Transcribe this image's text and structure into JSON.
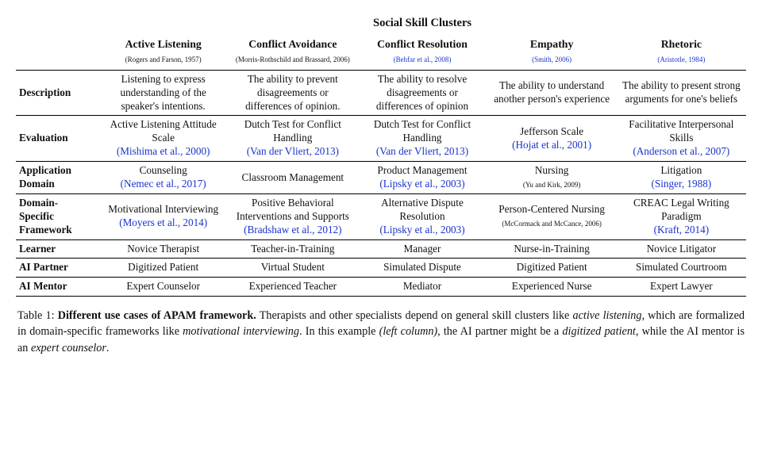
{
  "table": {
    "super_header": "Social Skill Clusters",
    "columns": [
      {
        "title": "Active Listening",
        "citation": "(Rogers and Farson, 1957)",
        "cite_style": "small"
      },
      {
        "title": "Conflict Avoidance",
        "citation": "(Morris-Rothschild and Brassard, 2006)",
        "cite_style": "small"
      },
      {
        "title": "Conflict Resolution",
        "citation": "(Behfar et al., 2008)",
        "cite_style": "link"
      },
      {
        "title": "Empathy",
        "citation": "(Smith, 2006)",
        "cite_style": "link"
      },
      {
        "title": "Rhetoric",
        "citation": "(Aristotle, 1984)",
        "cite_style": "link"
      }
    ],
    "rows": {
      "description": {
        "label": "Description",
        "cells": [
          {
            "text": "Listening to express understanding of the speaker's intentions."
          },
          {
            "text": "The ability to prevent disagreements or differences of opinion."
          },
          {
            "text": "The ability to resolve disagreements or differences of opinion"
          },
          {
            "text": "The ability to understand another person's experience"
          },
          {
            "text": "The ability to present strong arguments for one's beliefs"
          }
        ]
      },
      "evaluation": {
        "label": "Evaluation",
        "cells": [
          {
            "text": "Active Listening Attitude Scale",
            "citation": "(Mishima et al., 2000)",
            "cite_style": "link"
          },
          {
            "text": "Dutch Test for Conflict Handling",
            "citation": "(Van der Vliert, 2013)",
            "cite_style": "link"
          },
          {
            "text": "Dutch Test for Conflict Handling",
            "citation": "(Van der Vliert, 2013)",
            "cite_style": "link"
          },
          {
            "text": "Jefferson Scale",
            "citation": "(Hojat et al., 2001)",
            "cite_style": "link"
          },
          {
            "text": "Facilitative Interpersonal Skills",
            "citation": "(Anderson et al., 2007)",
            "cite_style": "link"
          }
        ]
      },
      "application": {
        "label_line1": "Application",
        "label_line2": "Domain",
        "cells": [
          {
            "text": "Counseling",
            "citation": "(Nemec et al., 2017)",
            "cite_style": "link"
          },
          {
            "text": "Classroom Management"
          },
          {
            "text": "Product Management",
            "citation": "(Lipsky et al., 2003)",
            "cite_style": "link"
          },
          {
            "text": "Nursing",
            "citation": "(Yu and Kirk, 2009)",
            "cite_style": "small"
          },
          {
            "text": "Litigation",
            "citation": "(Singer, 1988)",
            "cite_style": "link"
          }
        ]
      },
      "framework": {
        "label_line1": "Domain-",
        "label_line2": "Specific",
        "label_line3": "Framework",
        "cells": [
          {
            "text": "Motivational Interviewing",
            "citation": "(Moyers et al., 2014)",
            "cite_style": "link"
          },
          {
            "text": "Positive Behavioral Interventions and Supports",
            "citation": "(Bradshaw et al., 2012)",
            "cite_style": "link"
          },
          {
            "text": "Alternative Dispute Resolution",
            "citation": "(Lipsky et al., 2003)",
            "cite_style": "link"
          },
          {
            "text": "Person-Centered Nursing",
            "citation": "(McCormack and McCance, 2006)",
            "cite_style": "small"
          },
          {
            "text": "CREAC Legal Writing Paradigm",
            "citation": "(Kraft, 2014)",
            "cite_style": "link"
          }
        ]
      },
      "learner": {
        "label": "Learner",
        "cells": [
          {
            "text": "Novice Therapist"
          },
          {
            "text": "Teacher-in-Training"
          },
          {
            "text": "Manager"
          },
          {
            "text": "Nurse-in-Training"
          },
          {
            "text": "Novice Litigator"
          }
        ]
      },
      "ai_partner": {
        "label": "AI Partner",
        "cells": [
          {
            "text": "Digitized Patient"
          },
          {
            "text": "Virtual Student"
          },
          {
            "text": "Simulated Dispute"
          },
          {
            "text": "Digitized Patient"
          },
          {
            "text": "Simulated Courtroom"
          }
        ]
      },
      "ai_mentor": {
        "label": "AI Mentor",
        "cells": [
          {
            "text": "Expert Counselor"
          },
          {
            "text": "Experienced Teacher"
          },
          {
            "text": "Mediator"
          },
          {
            "text": "Experienced Nurse"
          },
          {
            "text": "Expert Lawyer"
          }
        ]
      }
    }
  },
  "caption": {
    "prefix": "Table 1: ",
    "title": "Different use cases of APAM framework.",
    "s_part1": " Therapists and other specialists depend on general skill clusters like ",
    "s_ital1": "active listening",
    "s_part2": ", which are formalized in domain-specific frameworks like ",
    "s_ital2": "motivational interviewing",
    "s_part3": ". In this example ",
    "s_ital3": "(left column)",
    "s_part4": ", the AI partner might be a ",
    "s_ital4": "digitized patient",
    "s_part5": ", while the AI mentor is an ",
    "s_ital5": "expert counselor",
    "s_part6": "."
  },
  "style": {
    "text_color": "#111111",
    "link_color": "#1a33cc",
    "rule_color": "#000000",
    "background": "#ffffff",
    "body_font_pt": 10,
    "header_font_pt": 10.5,
    "small_cite_font_pt": 7
  }
}
